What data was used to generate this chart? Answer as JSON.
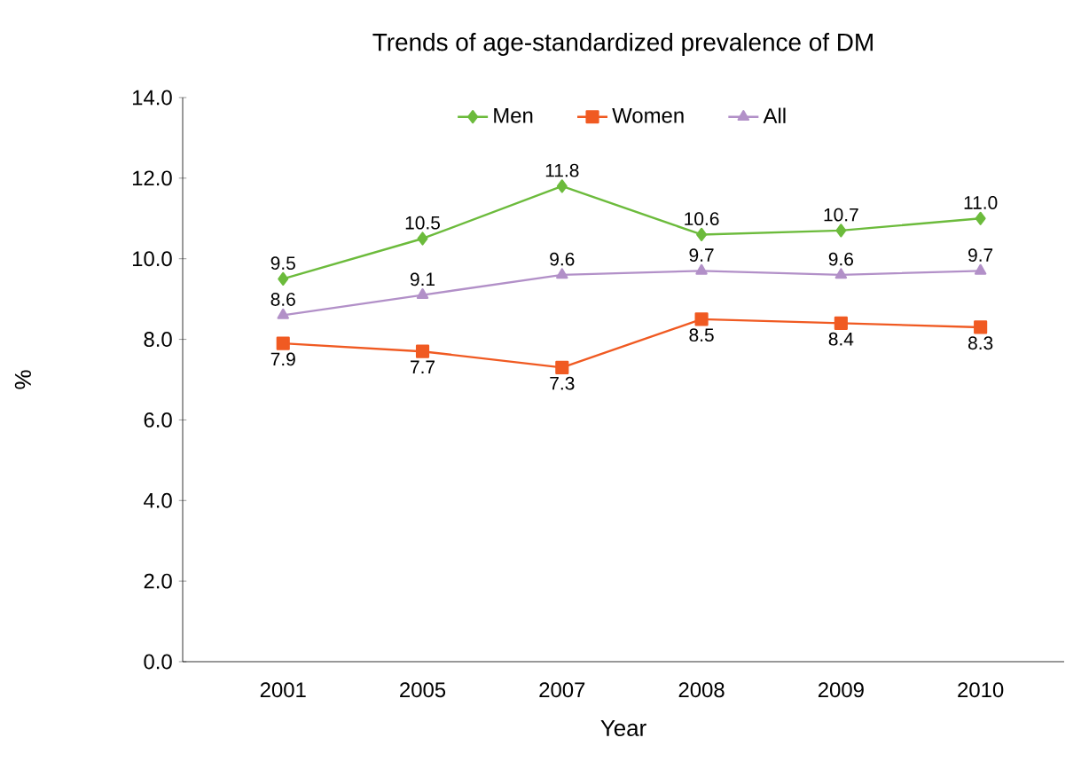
{
  "chart_data": {
    "type": "line",
    "title": "Trends of age-standardized prevalence of DM",
    "xlabel": "Year",
    "ylabel": "%",
    "categories": [
      "2001",
      "2005",
      "2007",
      "2008",
      "2009",
      "2010"
    ],
    "series": [
      {
        "name": "Men",
        "color": "#6cbb3c",
        "marker": "diamond",
        "values": [
          9.5,
          10.5,
          11.8,
          10.6,
          10.7,
          11.0
        ],
        "value_labels": [
          "9.5",
          "10.5",
          "11.8",
          "10.6",
          "10.7",
          "11.0"
        ]
      },
      {
        "name": "Women",
        "color": "#f05a22",
        "marker": "square",
        "values": [
          7.9,
          7.7,
          7.3,
          8.5,
          8.4,
          8.3
        ],
        "value_labels": [
          "7.9",
          "7.7",
          "7.3",
          "8.5",
          "8.4",
          "8.3"
        ]
      },
      {
        "name": "All",
        "color": "#b290c8",
        "marker": "triangle",
        "values": [
          8.6,
          9.1,
          9.6,
          9.7,
          9.6,
          9.7
        ],
        "value_labels": [
          "8.6",
          "9.1",
          "9.6",
          "9.7",
          "9.6",
          "9.7"
        ]
      }
    ],
    "ylim": [
      0,
      14
    ],
    "yticks": [
      {
        "value": 0,
        "label": "0.0"
      },
      {
        "value": 2,
        "label": "2.0"
      },
      {
        "value": 4,
        "label": "4.0"
      },
      {
        "value": 6,
        "label": "6.0"
      },
      {
        "value": 8,
        "label": "8.0"
      },
      {
        "value": 10,
        "label": "10.0"
      },
      {
        "value": 12,
        "label": "12.0"
      },
      {
        "value": 14,
        "label": "14.0"
      }
    ],
    "grid": false,
    "legend": "top",
    "line_style": "solid"
  }
}
